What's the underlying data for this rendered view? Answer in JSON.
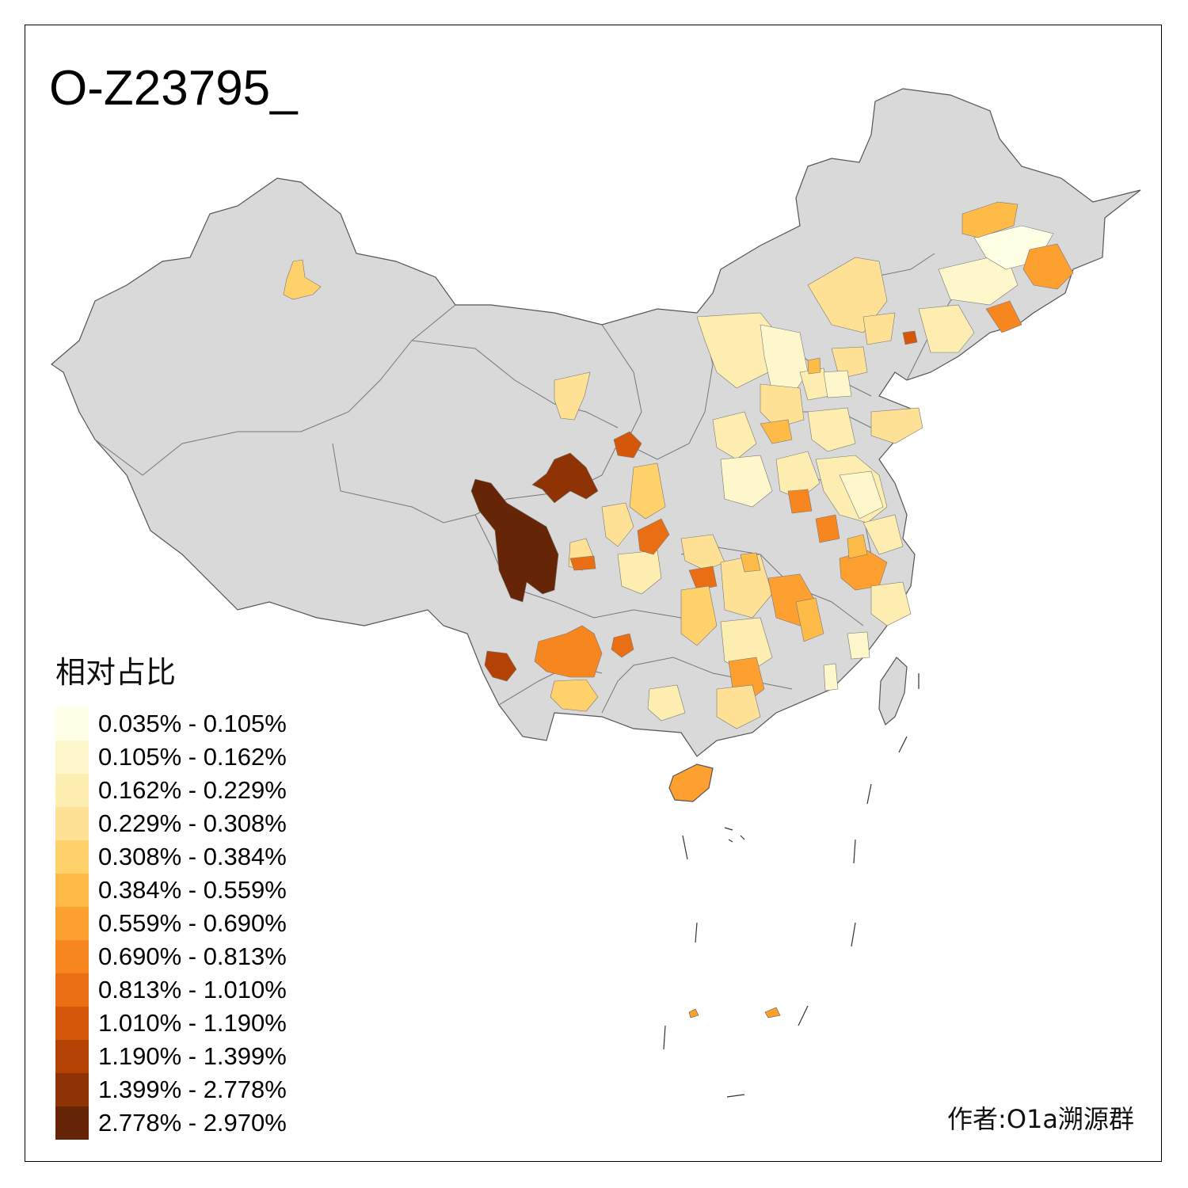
{
  "title": "O-Z23795_",
  "legend": {
    "title": "相对占比",
    "items": [
      {
        "label": "0.035% - 0.105%",
        "color": "#FFFFE5"
      },
      {
        "label": "0.105% - 0.162%",
        "color": "#FFF7CC"
      },
      {
        "label": "0.162% - 0.229%",
        "color": "#FEEDB0"
      },
      {
        "label": "0.229% - 0.308%",
        "color": "#FEE195"
      },
      {
        "label": "0.308% - 0.384%",
        "color": "#FED16A"
      },
      {
        "label": "0.384% - 0.559%",
        "color": "#FEBB47"
      },
      {
        "label": "0.559% - 0.690%",
        "color": "#FEA02F"
      },
      {
        "label": "0.690% - 0.813%",
        "color": "#F8861F"
      },
      {
        "label": "0.813% - 1.010%",
        "color": "#EA6E13"
      },
      {
        "label": "1.010% - 1.190%",
        "color": "#D4570A"
      },
      {
        "label": "1.190% - 1.399%",
        "color": "#B44204"
      },
      {
        "label": "1.399% - 2.778%",
        "color": "#8F3204"
      },
      {
        "label": "2.778% - 2.970%",
        "color": "#662506"
      }
    ]
  },
  "credit": "作者:O1a溯源群",
  "colors": {
    "land": "#D9D9D9",
    "border": "#555555",
    "frame": "#000000"
  }
}
